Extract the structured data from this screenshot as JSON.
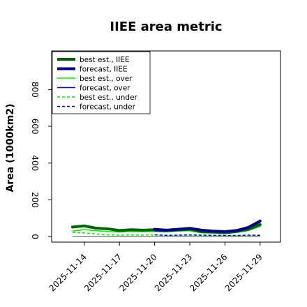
{
  "chart_data": {
    "type": "line",
    "title": "IIEE area metric",
    "xlabel": "",
    "ylabel": "Area (1000km2)",
    "ylim": [
      -30,
      1010
    ],
    "yticks": [
      0,
      200,
      400,
      600,
      800
    ],
    "xtick_labels": [
      "2025-11-14",
      "2025-11-17",
      "2025-11-20",
      "2025-11-23",
      "2025-11-26",
      "2025-11-29"
    ],
    "highlight_tick": "2025-11-20",
    "highlight_color": "#228b22",
    "x": [
      "2025-11-13",
      "2025-11-14",
      "2025-11-15",
      "2025-11-16",
      "2025-11-17",
      "2025-11-18",
      "2025-11-19",
      "2025-11-20",
      "2025-11-21",
      "2025-11-22",
      "2025-11-23",
      "2025-11-24",
      "2025-11-25",
      "2025-11-26",
      "2025-11-27",
      "2025-11-28",
      "2025-11-29"
    ],
    "grid": false,
    "legend_position": "top-left",
    "series": [
      {
        "name": "best est., IIEE",
        "color": "#006400",
        "style": "solid",
        "width": 4,
        "values": [
          52,
          58,
          46,
          42,
          33,
          37,
          35,
          37,
          33,
          37,
          40,
          27,
          25,
          21,
          28,
          40,
          65
        ]
      },
      {
        "name": "forecast, IIEE",
        "color": "#00008b",
        "style": "solid",
        "width": 4,
        "values": [
          null,
          null,
          null,
          null,
          null,
          null,
          null,
          40,
          35,
          40,
          45,
          35,
          30,
          27,
          33,
          50,
          85
        ]
      },
      {
        "name": "best est., over",
        "color": "#00ee00",
        "style": "solid",
        "width": 1.5,
        "values": [
          30,
          38,
          32,
          28,
          25,
          28,
          27,
          28,
          26,
          30,
          32,
          20,
          19,
          16,
          22,
          33,
          55
        ]
      },
      {
        "name": "forecast, over",
        "color": "#0000ff",
        "style": "solid",
        "width": 1.5,
        "values": [
          null,
          null,
          null,
          null,
          null,
          null,
          null,
          30,
          28,
          32,
          36,
          27,
          23,
          21,
          27,
          42,
          78
        ]
      },
      {
        "name": "best est., under",
        "color": "#00ee00",
        "style": "dashed",
        "width": 1.5,
        "values": [
          22,
          20,
          14,
          10,
          8,
          9,
          8,
          9,
          7,
          7,
          8,
          7,
          6,
          5,
          6,
          7,
          8
        ]
      },
      {
        "name": "forecast, under",
        "color": "#0000cd",
        "style": "dashed",
        "width": 1.5,
        "values": [
          null,
          null,
          null,
          null,
          null,
          null,
          null,
          10,
          7,
          8,
          9,
          8,
          7,
          6,
          6,
          8,
          7
        ]
      },
      {
        "name": "",
        "color": "#555555",
        "style": "solid",
        "width": 1,
        "values": [
          2,
          2,
          2,
          2,
          2,
          2,
          2,
          2,
          2,
          2,
          2,
          2,
          2,
          2,
          2,
          2,
          2
        ]
      }
    ]
  }
}
